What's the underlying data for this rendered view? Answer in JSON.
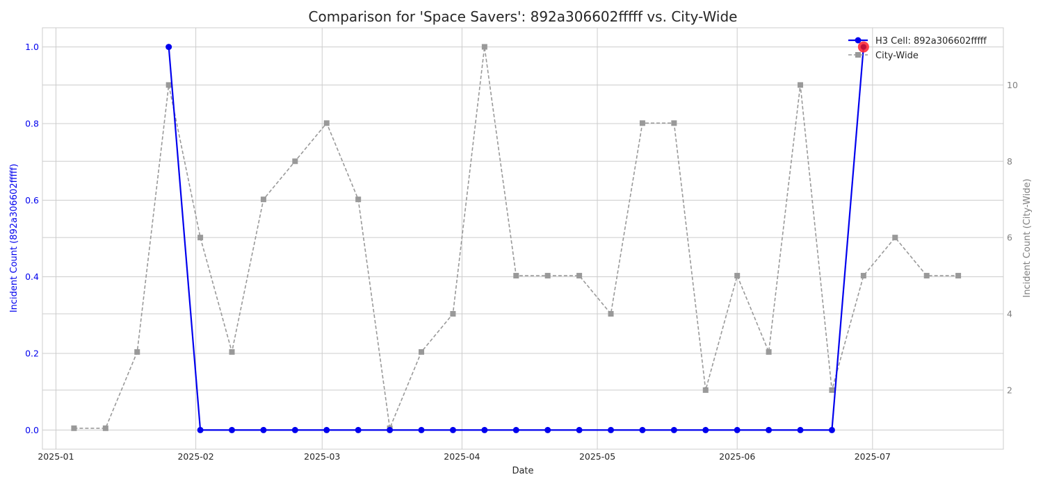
{
  "chart_data": {
    "type": "line",
    "title": "Comparison for 'Space Savers': 892a306602fffff vs. City-Wide",
    "xlabel": "Date",
    "ylabel_left": "Incident Count (892a306602fffff)",
    "ylabel_right": "Incident Count (City-Wide)",
    "xlim": [
      "2024-12-29",
      "2025-07-30"
    ],
    "ylim_left": [
      -0.05,
      1.05
    ],
    "ylim_right": [
      0.45,
      11.5
    ],
    "x_ticks": [
      "2025-01",
      "2025-02",
      "2025-03",
      "2025-04",
      "2025-05",
      "2025-06",
      "2025-07"
    ],
    "y_ticks_left": [
      "0.0",
      "0.2",
      "0.4",
      "0.6",
      "0.8",
      "1.0"
    ],
    "y_ticks_right": [
      "2",
      "4",
      "6",
      "8",
      "10"
    ],
    "grid": true,
    "legend_position": "top-right",
    "colors": {
      "cell": "#0000ee",
      "city": "#999999",
      "highlight": "#ff2a3a",
      "left_axis_text": "#0000ee",
      "right_axis_text": "#808080"
    },
    "series": [
      {
        "name": "H3 Cell: 892a306602fffff",
        "axis": "left",
        "style": "solid-circle",
        "points": [
          {
            "x": "2025-01-26",
            "y": 1
          },
          {
            "x": "2025-02-02",
            "y": 0
          },
          {
            "x": "2025-02-09",
            "y": 0
          },
          {
            "x": "2025-02-16",
            "y": 0
          },
          {
            "x": "2025-02-23",
            "y": 0
          },
          {
            "x": "2025-03-02",
            "y": 0
          },
          {
            "x": "2025-03-09",
            "y": 0
          },
          {
            "x": "2025-03-16",
            "y": 0
          },
          {
            "x": "2025-03-23",
            "y": 0
          },
          {
            "x": "2025-03-30",
            "y": 0
          },
          {
            "x": "2025-04-06",
            "y": 0
          },
          {
            "x": "2025-04-13",
            "y": 0
          },
          {
            "x": "2025-04-20",
            "y": 0
          },
          {
            "x": "2025-04-27",
            "y": 0
          },
          {
            "x": "2025-05-04",
            "y": 0
          },
          {
            "x": "2025-05-11",
            "y": 0
          },
          {
            "x": "2025-05-18",
            "y": 0
          },
          {
            "x": "2025-05-25",
            "y": 0
          },
          {
            "x": "2025-06-01",
            "y": 0
          },
          {
            "x": "2025-06-08",
            "y": 0
          },
          {
            "x": "2025-06-15",
            "y": 0
          },
          {
            "x": "2025-06-22",
            "y": 0
          },
          {
            "x": "2025-06-29",
            "y": 1
          }
        ]
      },
      {
        "name": "City-Wide",
        "axis": "right",
        "style": "dashed-square",
        "points": [
          {
            "x": "2025-01-05",
            "y": 1
          },
          {
            "x": "2025-01-12",
            "y": 1
          },
          {
            "x": "2025-01-19",
            "y": 3
          },
          {
            "x": "2025-01-26",
            "y": 10
          },
          {
            "x": "2025-02-02",
            "y": 6
          },
          {
            "x": "2025-02-09",
            "y": 3
          },
          {
            "x": "2025-02-16",
            "y": 7
          },
          {
            "x": "2025-02-23",
            "y": 8
          },
          {
            "x": "2025-03-02",
            "y": 9
          },
          {
            "x": "2025-03-09",
            "y": 7
          },
          {
            "x": "2025-03-16",
            "y": 1
          },
          {
            "x": "2025-03-23",
            "y": 3
          },
          {
            "x": "2025-03-30",
            "y": 4
          },
          {
            "x": "2025-04-06",
            "y": 11
          },
          {
            "x": "2025-04-13",
            "y": 5
          },
          {
            "x": "2025-04-20",
            "y": 5
          },
          {
            "x": "2025-04-27",
            "y": 5
          },
          {
            "x": "2025-05-04",
            "y": 4
          },
          {
            "x": "2025-05-11",
            "y": 9
          },
          {
            "x": "2025-05-18",
            "y": 9
          },
          {
            "x": "2025-05-25",
            "y": 2
          },
          {
            "x": "2025-06-01",
            "y": 5
          },
          {
            "x": "2025-06-08",
            "y": 3
          },
          {
            "x": "2025-06-15",
            "y": 10
          },
          {
            "x": "2025-06-22",
            "y": 2
          },
          {
            "x": "2025-06-29",
            "y": 5
          },
          {
            "x": "2025-07-06",
            "y": 6
          },
          {
            "x": "2025-07-13",
            "y": 5
          },
          {
            "x": "2025-07-20",
            "y": 5
          }
        ]
      }
    ],
    "highlight": {
      "series": "H3 Cell: 892a306602fffff",
      "x": "2025-06-29",
      "y": 1
    }
  }
}
